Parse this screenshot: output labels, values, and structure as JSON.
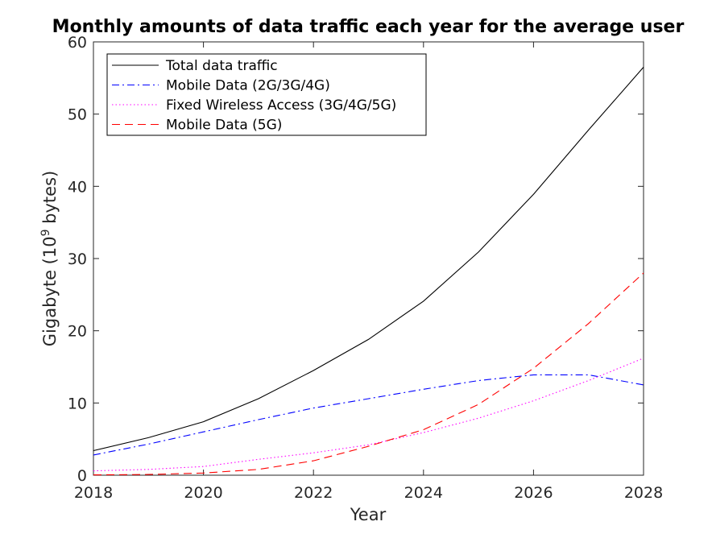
{
  "chart_data": {
    "type": "line",
    "title": "Monthly amounts of data traffic each year for the average user",
    "xlabel": "Year",
    "ylabel_text": "Gigabyte (10",
    "ylabel_exp": "9",
    "ylabel_tail": " bytes)",
    "xlim": [
      2018,
      2028
    ],
    "ylim": [
      0,
      60
    ],
    "xticks": [
      2018,
      2020,
      2022,
      2024,
      2026,
      2028
    ],
    "yticks": [
      0,
      10,
      20,
      30,
      40,
      50,
      60
    ],
    "grid": false,
    "legend_position": "top-left",
    "x": [
      2018,
      2019,
      2020,
      2021,
      2022,
      2023,
      2024,
      2025,
      2026,
      2027,
      2028
    ],
    "series": [
      {
        "name": "Total data traffic",
        "color": "#000000",
        "dash": "solid",
        "values": [
          3.4,
          5.2,
          7.4,
          10.6,
          14.5,
          18.8,
          24.1,
          30.9,
          38.9,
          47.8,
          56.5
        ]
      },
      {
        "name": "Mobile Data (2G/3G/4G)",
        "color": "#0000ff",
        "dash": "dashdot",
        "values": [
          2.8,
          4.3,
          6.0,
          7.7,
          9.3,
          10.6,
          11.9,
          13.1,
          13.9,
          13.9,
          12.5
        ]
      },
      {
        "name": "Fixed Wireless Access (3G/4G/5G)",
        "color": "#ff00ff",
        "dash": "dotted",
        "values": [
          0.6,
          0.8,
          1.2,
          2.2,
          3.1,
          4.2,
          5.9,
          7.9,
          10.3,
          13.1,
          16.2
        ]
      },
      {
        "name": "Mobile Data (5G)",
        "color": "#ff0000",
        "dash": "dashed",
        "values": [
          0.05,
          0.1,
          0.3,
          0.8,
          2.0,
          4.0,
          6.3,
          9.8,
          14.8,
          21.0,
          28.0
        ]
      }
    ]
  }
}
